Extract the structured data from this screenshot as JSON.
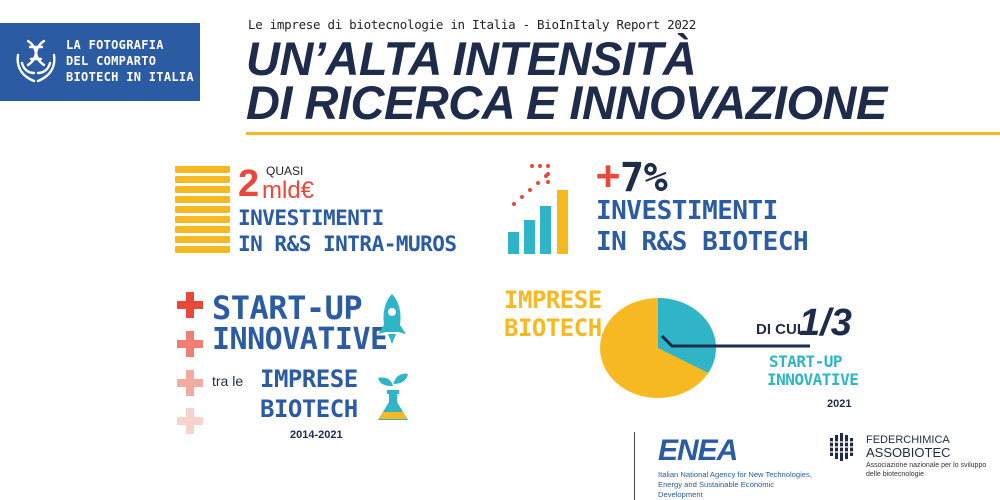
{
  "header": {
    "badge_text": "LA FOTOGRAFIA\nDEL COMPARTO\nBIOTECH IN ITALIA",
    "badge_icon": "hands-holding-dna-icon",
    "subtitle": "Le imprese di biotecnologie in Italia - BioInItaly Report 2022",
    "title_line1": "UN’ALTA INTENSITÀ",
    "title_line2": "DI RICERCA E INNOVAZIONE"
  },
  "block_investments_intra": {
    "icon": "coin-stack-icon",
    "quasi": "QUASI",
    "amount_num": "2",
    "amount_unit": "mld€",
    "line1": "INVESTIMENTI",
    "line2": "IN R&S INTRA-MUROS"
  },
  "block_investments_growth": {
    "icon": "growth-bar-chart-icon",
    "plus": "+",
    "value": "7%",
    "line1": "INVESTIMENTI",
    "line2": "IN R&S BIOTECH"
  },
  "block_startups": {
    "icons": [
      "plus-icon",
      "rocket-icon",
      "sprout-flask-icon"
    ],
    "line1": "START-UP",
    "line2": "INNOVATIVE",
    "connector": "tra le",
    "line3": "IMPRESE",
    "line4": "BIOTECH",
    "years": "2014-2021"
  },
  "block_share": {
    "label1": "IMPRESE",
    "label2": "BIOTECH",
    "pie_share": 0.333,
    "prefix": "DI CUI",
    "fraction": "1/3",
    "caption1": "START-UP",
    "caption2": "INNOVATIVE",
    "year": "2021"
  },
  "footer": {
    "enea_logo": "ENEA",
    "enea_subtitle": "Italian National Agency for New Technologies, Energy and Sustainable Economic Development",
    "federchimica_icon": "federchimica-grid-icon",
    "federchimica_line1": "FEDERCHIMICA",
    "federchimica_line2": "ASSOBIOTEC",
    "federchimica_line3": "Associazione nazionale per lo sviluppo delle biotecnologie"
  },
  "colors": {
    "navy": "#1e2b4a",
    "blue": "#2a5ba3",
    "gold": "#f6b922",
    "red": "#e8473a",
    "teal": "#2fb5c7"
  }
}
